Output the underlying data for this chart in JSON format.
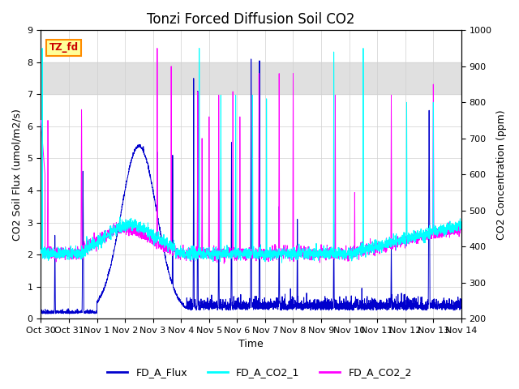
{
  "title": "Tonzi Forced Diffusion Soil CO2",
  "xlabel": "Time",
  "ylabel_left": "CO2 Soil Flux (umol/m2/s)",
  "ylabel_right": "CO2 Concentration (ppm)",
  "ylim_left": [
    0.0,
    9.0
  ],
  "ylim_right": [
    200,
    1000
  ],
  "yticks_left": [
    0.0,
    1.0,
    2.0,
    3.0,
    4.0,
    5.0,
    6.0,
    7.0,
    8.0,
    9.0
  ],
  "yticks_right": [
    200,
    300,
    400,
    500,
    600,
    700,
    800,
    900,
    1000
  ],
  "xtick_labels": [
    "Oct 30",
    "Oct 31",
    "Nov 1",
    "Nov 2",
    "Nov 3",
    "Nov 4",
    "Nov 5",
    "Nov 6",
    "Nov 7",
    "Nov 8",
    "Nov 9",
    "Nov 10",
    "Nov 11",
    "Nov 12",
    "Nov 13",
    "Nov 14"
  ],
  "color_flux": "#0000CD",
  "color_co2_1": "#00FFFF",
  "color_co2_2": "#FF00FF",
  "legend_labels": [
    "FD_A_Flux",
    "FD_A_CO2_1",
    "FD_A_CO2_2"
  ],
  "label_box_text": "TZ_fd",
  "label_box_facecolor": "#FFFF99",
  "label_box_edgecolor": "#FF8C00",
  "label_box_textcolor": "#CC0000",
  "grid_color": "#D0D0D0",
  "axes_bg_color": "#FFFFFF",
  "gray_band_low": 7.0,
  "gray_band_high": 8.0,
  "n_points": 3000,
  "days": 15,
  "title_fontsize": 12,
  "axis_label_fontsize": 9,
  "tick_fontsize": 8
}
